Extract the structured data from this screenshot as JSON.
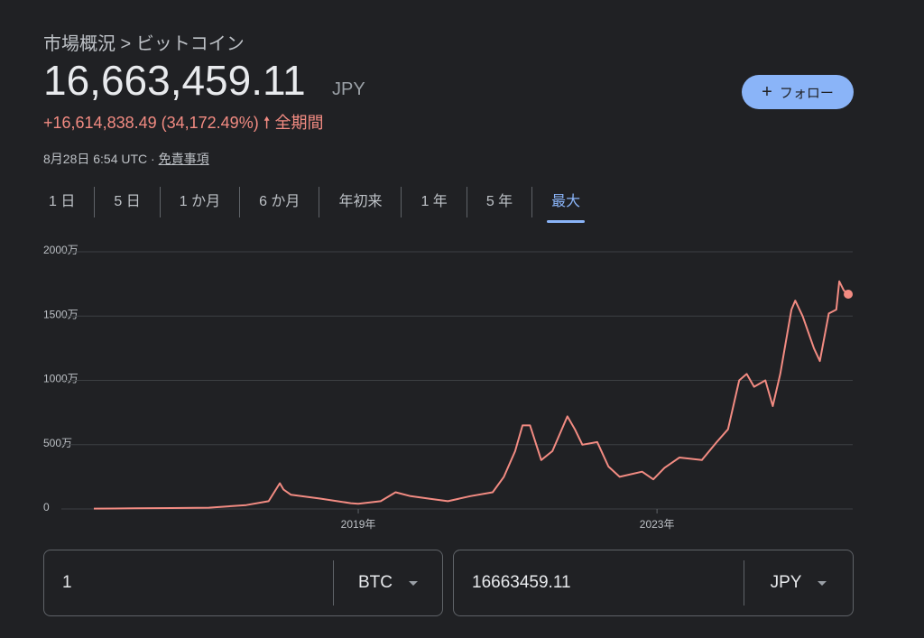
{
  "header": {
    "breadcrumb": "市場概況 > ビットコイン",
    "price": "16,663,459.11",
    "currency": "JPY",
    "change": "+16,614,838.49 (34,172.49%)",
    "period": "全期間",
    "timestamp": "8月28日 6:54 UTC · ",
    "disclaimer": "免責事項",
    "follow": "フォロー"
  },
  "tabs": {
    "items": [
      "1 日",
      "5 日",
      "1 か月",
      "6 か月",
      "年初来",
      "1 年",
      "5 年",
      "最大"
    ],
    "active": 7
  },
  "chart_data": {
    "type": "line",
    "color": "#f28b82",
    "x": [
      2015.46,
      2016.0,
      2016.5,
      2017.0,
      2017.5,
      2017.8,
      2017.95,
      2018.0,
      2018.1,
      2018.5,
      2018.9,
      2019.0,
      2019.3,
      2019.5,
      2019.7,
      2019.95,
      2020.2,
      2020.5,
      2020.8,
      2020.95,
      2021.1,
      2021.2,
      2021.3,
      2021.45,
      2021.6,
      2021.8,
      2021.9,
      2022.0,
      2022.2,
      2022.35,
      2022.5,
      2022.8,
      2022.95,
      2023.1,
      2023.3,
      2023.6,
      2023.8,
      2023.95,
      2024.1,
      2024.2,
      2024.3,
      2024.45,
      2024.55,
      2024.65,
      2024.8,
      2024.85,
      2024.95,
      2025.1,
      2025.18,
      2025.3,
      2025.4,
      2025.44,
      2025.5,
      2025.56
    ],
    "values": [
      30000,
      50000,
      70000,
      100000,
      300000,
      600000,
      2000000,
      1500000,
      1100000,
      800000,
      450000,
      400000,
      600000,
      1300000,
      1000000,
      800000,
      600000,
      1000000,
      1300000,
      2500000,
      4500000,
      6500000,
      6500000,
      3800000,
      4500000,
      7200000,
      6200000,
      5000000,
      5200000,
      3300000,
      2500000,
      2900000,
      2300000,
      3200000,
      4000000,
      3800000,
      5200000,
      6200000,
      10000000,
      10500000,
      9500000,
      10000000,
      8000000,
      10500000,
      15500000,
      16200000,
      15000000,
      12500000,
      11500000,
      15200000,
      15500000,
      17700000,
      17000000,
      16700000
    ],
    "xlim": [
      2015.46,
      2025.62
    ],
    "ylim": [
      0,
      20000000
    ],
    "xticks": [
      {
        "value": 2019,
        "label": "2019年"
      },
      {
        "value": 2023,
        "label": "2023年"
      }
    ],
    "yticks": [
      0,
      {
        "value": 5000000,
        "label": "500万"
      },
      {
        "value": 10000000,
        "label": "1000万"
      },
      {
        "value": 15000000,
        "label": "1500万"
      },
      {
        "value": 20000000,
        "label": "2000万"
      }
    ],
    "grid": true
  },
  "converter": {
    "from_amount": "1",
    "from_unit": "BTC",
    "to_amount": "16663459.11",
    "to_unit": "JPY"
  }
}
